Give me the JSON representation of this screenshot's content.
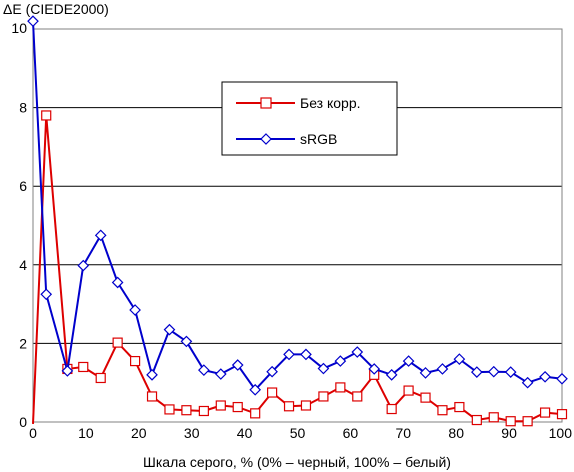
{
  "chart_data": {
    "type": "line",
    "title": "",
    "ylabel": "ΔE (CIEDE2000)",
    "xlabel": "Шкала серого, % (0% – черный, 100% – белый)",
    "xlim": [
      0,
      100
    ],
    "ylim": [
      0,
      10
    ],
    "xticks": [
      0,
      10,
      20,
      30,
      40,
      50,
      60,
      70,
      80,
      90,
      100
    ],
    "yticks": [
      0,
      2,
      4,
      6,
      8,
      10
    ],
    "grid": "horizontal",
    "legend_position": "top-center",
    "x": [
      0,
      2.5,
      6.5,
      9.5,
      12.8,
      16,
      19.3,
      22.5,
      25.8,
      29,
      32.3,
      35.5,
      38.7,
      42,
      45.2,
      48.4,
      51.6,
      54.9,
      58.1,
      61.3,
      64.5,
      67.8,
      71,
      74.2,
      77.4,
      80.6,
      83.9,
      87.1,
      90.3,
      93.5,
      96.8,
      100
    ],
    "series": [
      {
        "name": "Без корр.",
        "color": "#dd0000",
        "marker": "square",
        "y_start": [
          -0.05,
          7.8
        ],
        "values": [
          -0.05,
          7.8,
          1.35,
          1.4,
          1.12,
          2.02,
          1.55,
          0.65,
          0.32,
          0.3,
          0.28,
          0.42,
          0.38,
          0.22,
          0.75,
          0.4,
          0.42,
          0.65,
          0.88,
          0.65,
          1.2,
          0.33,
          0.8,
          0.62,
          0.3,
          0.38,
          0.05,
          0.12,
          0.02,
          0.02,
          0.24,
          0.2
        ]
      },
      {
        "name": "sRGB",
        "color": "#0000cc",
        "marker": "diamond",
        "values": [
          10.2,
          3.25,
          1.3,
          3.98,
          4.75,
          3.55,
          2.85,
          1.2,
          2.35,
          2.05,
          1.32,
          1.22,
          1.45,
          0.82,
          1.28,
          1.72,
          1.72,
          1.36,
          1.55,
          1.78,
          1.35,
          1.2,
          1.55,
          1.25,
          1.35,
          1.6,
          1.27,
          1.28,
          1.27,
          1.0,
          1.15,
          1.1
        ]
      }
    ]
  }
}
